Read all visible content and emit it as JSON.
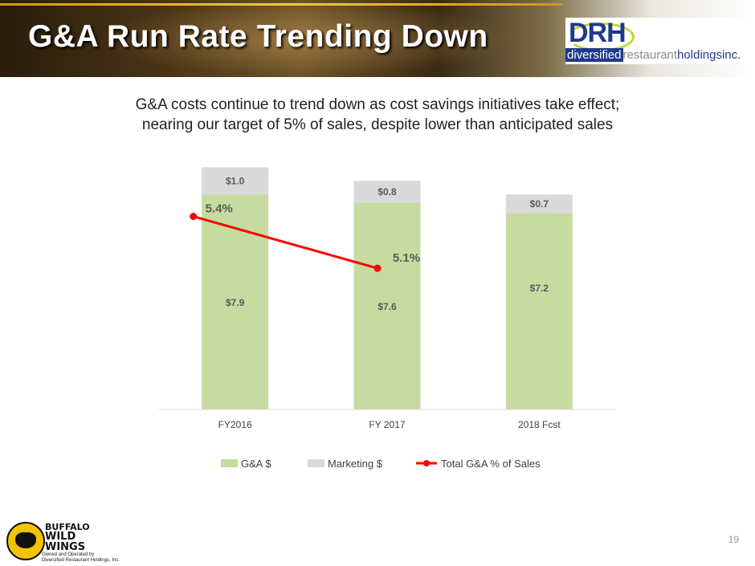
{
  "slide": {
    "title": "G&A Run Rate Trending Down",
    "subtitle_line1": "G&A costs continue to trend down as cost savings initiatives take effect;",
    "subtitle_line2": "nearing our target of 5% of sales, despite lower than anticipated sales",
    "page_number": "19"
  },
  "brand": {
    "drh_mark": "DRH",
    "drh_name_part1": "diversified",
    "drh_name_part2": "restaurant",
    "drh_name_part3": "holdings",
    "drh_name_part4": "inc.",
    "bww_line1": "BUFFALO",
    "bww_line2": "WILD",
    "bww_line3": "WINGS",
    "bww_owned1": "Owned and Operated by",
    "bww_owned2": "Diversified Restaurant Holdings, Inc."
  },
  "colors": {
    "ga": "#c5dba0",
    "marketing": "#d9d9d9",
    "line": "#ff0000",
    "label": "#595959"
  },
  "chart_data": {
    "type": "bar",
    "stacked": true,
    "categories": [
      "FY2016",
      "FY 2017",
      "2018 Fcst"
    ],
    "series": [
      {
        "name": "G&A $",
        "values": [
          7.9,
          7.6,
          7.2
        ],
        "labels": [
          "$7.9",
          "$7.6",
          "$7.2"
        ]
      },
      {
        "name": "Marketing $",
        "values": [
          1.0,
          0.8,
          0.7
        ],
        "labels": [
          "$1.0",
          "$0.8",
          "$0.7"
        ]
      }
    ],
    "line_series": {
      "name": "Total G&A % of Sales",
      "values": [
        5.4,
        5.1
      ],
      "labels": [
        "5.4%",
        "5.1%"
      ]
    },
    "ylim": [
      0,
      9
    ],
    "legend_position": "bottom",
    "grid": false,
    "title": "",
    "xlabel": "",
    "ylabel": ""
  }
}
